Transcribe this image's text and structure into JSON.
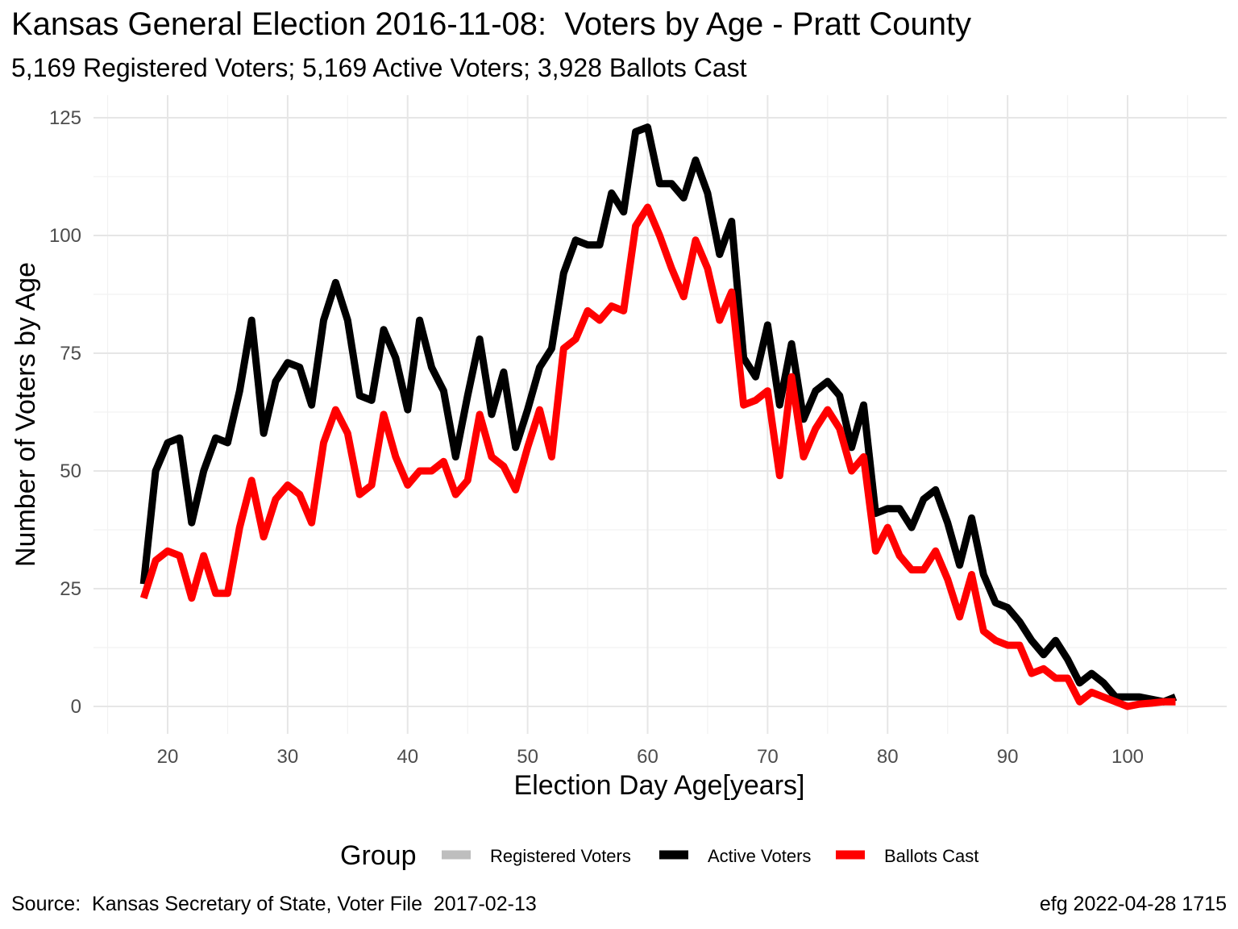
{
  "title": "Kansas General Election 2016-11-08:  Voters by Age - Pratt County",
  "subtitle": "5,169 Registered Voters; 5,169 Active Voters; 3,928 Ballots Cast",
  "caption_left": "Source:  Kansas Secretary of State, Voter File  2017-02-13",
  "caption_right": "efg 2022-04-28 1715",
  "chart_data": {
    "type": "line",
    "xlabel": "Election Day Age[years]",
    "ylabel": "Number of Voters by Age",
    "xlim": [
      18,
      104
    ],
    "ylim": [
      0,
      125
    ],
    "x_ticks": [
      20,
      30,
      40,
      50,
      60,
      70,
      80,
      90,
      100
    ],
    "y_ticks": [
      0,
      25,
      50,
      75,
      100,
      125
    ],
    "grid": true,
    "legend_title": "Group",
    "legend_position": "bottom",
    "x": [
      18,
      19,
      20,
      21,
      22,
      23,
      24,
      25,
      26,
      27,
      28,
      29,
      30,
      31,
      32,
      33,
      34,
      35,
      36,
      37,
      38,
      39,
      40,
      41,
      42,
      43,
      44,
      45,
      46,
      47,
      48,
      49,
      50,
      51,
      52,
      53,
      54,
      55,
      56,
      57,
      58,
      59,
      60,
      61,
      62,
      63,
      64,
      65,
      66,
      67,
      68,
      69,
      70,
      71,
      72,
      73,
      74,
      75,
      76,
      77,
      78,
      79,
      80,
      81,
      82,
      83,
      84,
      85,
      86,
      87,
      88,
      89,
      90,
      91,
      92,
      93,
      94,
      95,
      96,
      97,
      98,
      99,
      100,
      101,
      102,
      103,
      104
    ],
    "series": [
      {
        "name": "Registered Voters",
        "color": "#bebebe",
        "values": [
          26,
          50,
          56,
          57,
          39,
          50,
          57,
          56,
          67,
          82,
          58,
          69,
          73,
          72,
          64,
          82,
          90,
          82,
          66,
          65,
          80,
          74,
          63,
          82,
          72,
          67,
          53,
          66,
          78,
          62,
          71,
          55,
          63,
          72,
          76,
          92,
          99,
          98,
          98,
          109,
          105,
          122,
          123,
          111,
          111,
          108,
          116,
          109,
          96,
          103,
          74,
          70,
          81,
          64,
          77,
          61,
          67,
          69,
          66,
          55,
          64,
          41,
          42,
          42,
          38,
          44,
          46,
          39,
          30,
          40,
          28,
          22,
          21,
          18,
          14,
          11,
          14,
          10,
          5,
          7,
          5,
          2,
          2,
          2,
          1.5,
          1,
          2
        ]
      },
      {
        "name": "Active Voters",
        "color": "#000000",
        "values": [
          26,
          50,
          56,
          57,
          39,
          50,
          57,
          56,
          67,
          82,
          58,
          69,
          73,
          72,
          64,
          82,
          90,
          82,
          66,
          65,
          80,
          74,
          63,
          82,
          72,
          67,
          53,
          66,
          78,
          62,
          71,
          55,
          63,
          72,
          76,
          92,
          99,
          98,
          98,
          109,
          105,
          122,
          123,
          111,
          111,
          108,
          116,
          109,
          96,
          103,
          74,
          70,
          81,
          64,
          77,
          61,
          67,
          69,
          66,
          55,
          64,
          41,
          42,
          42,
          38,
          44,
          46,
          39,
          30,
          40,
          28,
          22,
          21,
          18,
          14,
          11,
          14,
          10,
          5,
          7,
          5,
          2,
          2,
          2,
          1.5,
          1,
          2
        ]
      },
      {
        "name": "Ballots Cast",
        "color": "#ff0000",
        "values": [
          23,
          31,
          33,
          32,
          23,
          32,
          24,
          24,
          38,
          48,
          36,
          44,
          47,
          45,
          39,
          56,
          63,
          58,
          45,
          47,
          62,
          53,
          47,
          50,
          50,
          52,
          45,
          48,
          62,
          53,
          51,
          46,
          55,
          63,
          53,
          76,
          78,
          84,
          82,
          85,
          84,
          102,
          106,
          100,
          93,
          87,
          99,
          93,
          82,
          88,
          64,
          65,
          67,
          49,
          70,
          53,
          59,
          63,
          59,
          50,
          53,
          33,
          38,
          32,
          29,
          29,
          33,
          27,
          19,
          28,
          16,
          14,
          13,
          13,
          7,
          8,
          6,
          6,
          1,
          3,
          2,
          1,
          0,
          0.5,
          0.7,
          1,
          1
        ]
      }
    ]
  }
}
